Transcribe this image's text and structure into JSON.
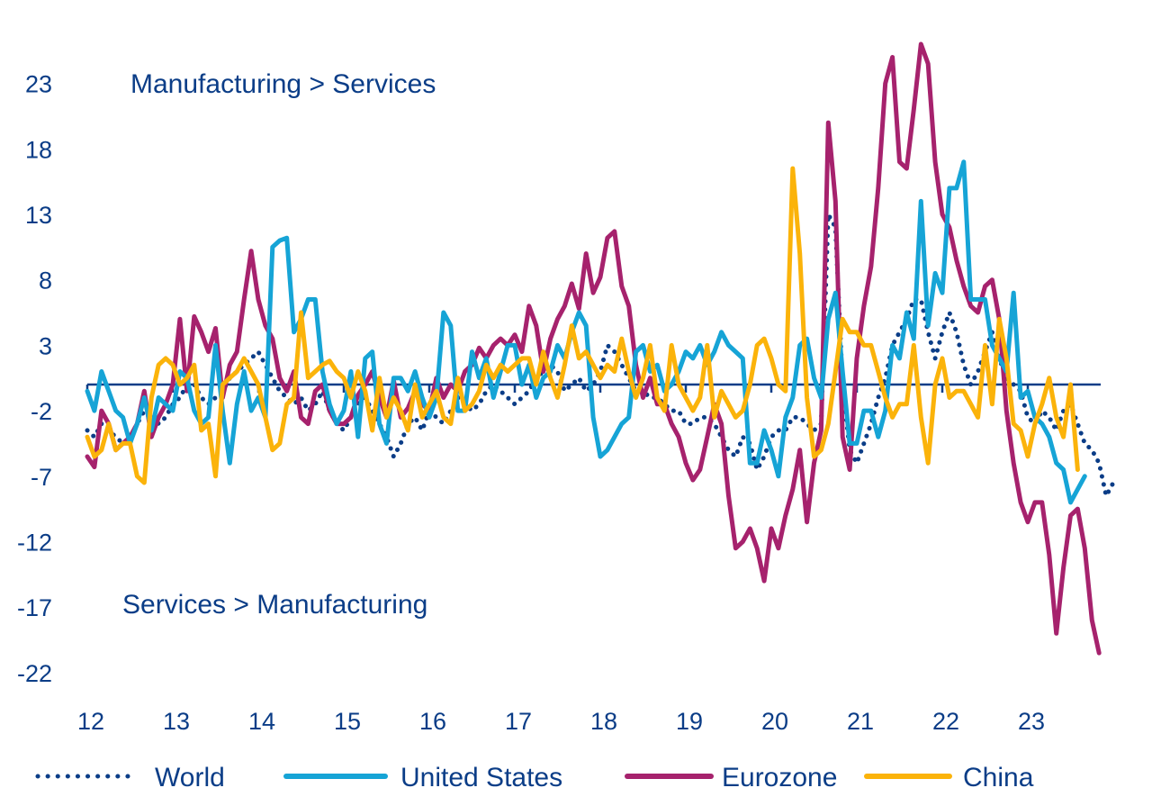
{
  "chart_data": {
    "type": "line",
    "title": "",
    "xlabel": "",
    "ylabel": "",
    "ylim": [
      -22,
      26
    ],
    "yticks": [
      23,
      18,
      13,
      8,
      3,
      -2,
      -7,
      -12,
      -17,
      -22
    ],
    "ytick_labels": [
      "23",
      "18",
      "13",
      "8",
      "3",
      "-2",
      "-7",
      "-12",
      "-17",
      "-22"
    ],
    "xticks": [
      12,
      13,
      14,
      15,
      16,
      17,
      18,
      19,
      20,
      21,
      22,
      23
    ],
    "xtick_labels": [
      "12",
      "13",
      "14",
      "15",
      "16",
      "17",
      "18",
      "19",
      "20",
      "21",
      "22",
      "23"
    ],
    "x_start": "2012-01",
    "x_frequency": "monthly",
    "zero_line": 0,
    "grid": false,
    "legend_position": "bottom",
    "annotations": [
      {
        "text": "Manufacturing > Services",
        "position": "top-left"
      },
      {
        "text": "Services > Manufacturing",
        "position": "bottom-left"
      }
    ],
    "series": [
      {
        "name": "World",
        "style": "dotted",
        "color": "#0b3d87",
        "values": [
          -3.5,
          -4,
          -3,
          -3.5,
          -4,
          -4.5,
          -4,
          -3,
          -2,
          -2,
          -3,
          -2.5,
          -1.5,
          -1,
          0,
          0,
          -1,
          -1.5,
          -1,
          -0.5,
          0.5,
          1,
          1.5,
          2,
          2.5,
          1.5,
          0.5,
          -0.5,
          -1,
          -1.5,
          -1,
          -2,
          -1.5,
          -0.5,
          -2,
          -3,
          -3.5,
          -2.5,
          -1.5,
          -1,
          -2,
          -3,
          -4,
          -5.5,
          -4.5,
          -3,
          -2.5,
          -3.5,
          -2,
          -2.5,
          -3,
          -2,
          -1,
          -1.5,
          -2,
          -1.5,
          -0.5,
          0,
          -0.5,
          -1,
          -1.5,
          -1,
          -0.5,
          0.5,
          1,
          1.5,
          1,
          -0.5,
          0,
          0.5,
          -0.5,
          0,
          1,
          3,
          2.5,
          1.5,
          0.5,
          -0.5,
          -0.5,
          -1,
          -1,
          -1.5,
          -2,
          -2,
          -3,
          -3,
          -2.5,
          -2.5,
          -3,
          -4,
          -5,
          -5.5,
          -4,
          -4.5,
          -6.5,
          -5.5,
          -4,
          -3.5,
          -3.5,
          -2.5,
          -2.5,
          -3,
          -3.5,
          -3,
          13,
          12,
          0,
          -5,
          -6,
          -4.5,
          -3,
          -1,
          0.5,
          3,
          4,
          5,
          6.5,
          6.5,
          4,
          2,
          4,
          5.5,
          4,
          1.5,
          0,
          1,
          2.5,
          4,
          2,
          0.5,
          0,
          -0.5,
          -2.5,
          -3,
          -2,
          -2.5,
          -3.5,
          -2,
          -1.5,
          -3,
          -4.5,
          -5,
          -6,
          -8.5,
          -7.5
        ]
      },
      {
        "name": "United States",
        "style": "solid",
        "color": "#16a4d6",
        "values": [
          -0.5,
          -2,
          1,
          -0.5,
          -2,
          -2.5,
          -4.5,
          -3,
          -1,
          -3.5,
          -1,
          -1.5,
          -2,
          1,
          0.5,
          -2,
          -3,
          -2.5,
          3,
          -2,
          -6,
          -1.5,
          1,
          -2,
          -1,
          -2.5,
          10.5,
          11,
          11.2,
          4,
          5,
          6.5,
          6.5,
          1,
          -1.5,
          -3,
          -2,
          1,
          -4,
          2,
          2.5,
          -3,
          -4.5,
          0.5,
          0.5,
          -0.5,
          1,
          -1,
          -2.5,
          -1,
          5.5,
          4.5,
          -2,
          -2,
          2.5,
          0.5,
          2,
          -1,
          1,
          3,
          3,
          0,
          1.5,
          -1,
          0.5,
          1,
          3,
          2,
          4,
          5.5,
          4.5,
          -2.5,
          -5.5,
          -5,
          -4,
          -3,
          -2.5,
          2.5,
          3,
          1,
          1.5,
          -0.5,
          0,
          1,
          2.5,
          2,
          3,
          1.5,
          2.5,
          4,
          3,
          2.5,
          2,
          -6,
          -6,
          -3.5,
          -5,
          -7,
          -2.5,
          -1,
          3,
          3.5,
          0.5,
          -1,
          5,
          7,
          1,
          -4.5,
          -4.5,
          -2,
          -2,
          -4,
          -2,
          3,
          2,
          5.5,
          3.5,
          14,
          4.5,
          8.5,
          7,
          15,
          15,
          17,
          6.5,
          6.5,
          6.5,
          3,
          2,
          1,
          7,
          -1,
          -0.5,
          -2.5,
          -3,
          -4,
          -6,
          -6.5,
          -9,
          -8,
          -7
        ]
      },
      {
        "name": "Eurozone",
        "style": "solid",
        "color": "#a6226d",
        "values": [
          -5.5,
          -6.3,
          -2,
          -3,
          -5,
          -4.5,
          -4,
          -3,
          -0.5,
          -4,
          -2.5,
          -1.5,
          0,
          5,
          -0.5,
          5.2,
          4,
          2.5,
          4.3,
          -1,
          1.5,
          2.5,
          6.5,
          10.2,
          6.5,
          4.5,
          3.5,
          0.5,
          -0.5,
          1,
          -2.5,
          -3,
          -0.5,
          0,
          -2,
          -3,
          -3,
          -2.5,
          -0.8,
          0,
          1,
          -1,
          -2.5,
          0.3,
          -2.5,
          -1.8,
          -0.5,
          -1.5,
          -2,
          0.5,
          -1,
          0,
          -0.5,
          1,
          1.5,
          2.8,
          2,
          3,
          3.5,
          3,
          3.8,
          2.5,
          6,
          4.5,
          1,
          3.5,
          5,
          6,
          7.7,
          5.8,
          10,
          7,
          8.2,
          11.2,
          11.7,
          7.5,
          6,
          1.5,
          -1,
          0.5,
          -1.5,
          -1.5,
          -3,
          -4,
          -6,
          -7.3,
          -6.5,
          -4,
          -1.5,
          -3,
          -8.5,
          -12.5,
          -12,
          -11,
          -12.5,
          -15,
          -11,
          -12.5,
          -10,
          -8,
          -5,
          -10.5,
          -6,
          -3.5,
          20,
          14,
          -4,
          -6.5,
          2,
          6,
          9,
          15,
          23,
          25,
          17,
          16.5,
          21,
          26,
          24.5,
          17,
          13,
          12,
          9.5,
          7.5,
          6,
          5.5,
          7.5,
          8,
          5,
          -2,
          -6,
          -9,
          -10.5,
          -9,
          -9,
          -13,
          -19,
          -14,
          -10,
          -9.5,
          -12.5,
          -18,
          -20.5
        ]
      },
      {
        "name": "China",
        "style": "solid",
        "color": "#fbb30a",
        "values": [
          -4,
          -5.5,
          -5,
          -3,
          -5,
          -4.5,
          -4.5,
          -7,
          -7.5,
          -1,
          1.5,
          2,
          1.5,
          0,
          0.5,
          1.5,
          -3.5,
          -3,
          -7,
          0,
          0.5,
          1,
          2,
          1,
          0,
          -2.5,
          -5,
          -4.5,
          -1.5,
          -1,
          5.5,
          0.5,
          1,
          1.5,
          1.8,
          1,
          0.5,
          -1,
          1,
          -0.5,
          -3.5,
          0.5,
          -2.5,
          -1,
          -2,
          -3.5,
          0,
          -2.5,
          -1.5,
          -0.5,
          -2.5,
          -3,
          0.5,
          -2,
          -1.5,
          -0.5,
          1.5,
          0.5,
          1.5,
          1,
          1.5,
          2,
          2,
          0,
          2.5,
          0.5,
          -1,
          1.5,
          4.5,
          2,
          2.5,
          1.5,
          0.5,
          1.5,
          1,
          3.5,
          1,
          -1,
          0.5,
          3,
          -1,
          -2,
          3,
          0,
          -1,
          -2,
          -1,
          3,
          -2.5,
          -0.5,
          -1.5,
          -2.5,
          -2,
          0,
          3,
          3.5,
          2,
          0,
          -0.5,
          16.5,
          10,
          -1,
          -5.5,
          -5,
          -3,
          1,
          5,
          4,
          4,
          3,
          3,
          1,
          -1,
          -2.5,
          -1.5,
          -1.5,
          3,
          -2.5,
          -6,
          0,
          2,
          -1,
          -0.5,
          -0.5,
          -1.5,
          -2.5,
          3,
          -1.5,
          5,
          2,
          -3,
          -3.5,
          -5.5,
          -3,
          -1.5,
          0.5,
          -2.5,
          -4,
          0,
          -6.5
        ]
      }
    ]
  }
}
